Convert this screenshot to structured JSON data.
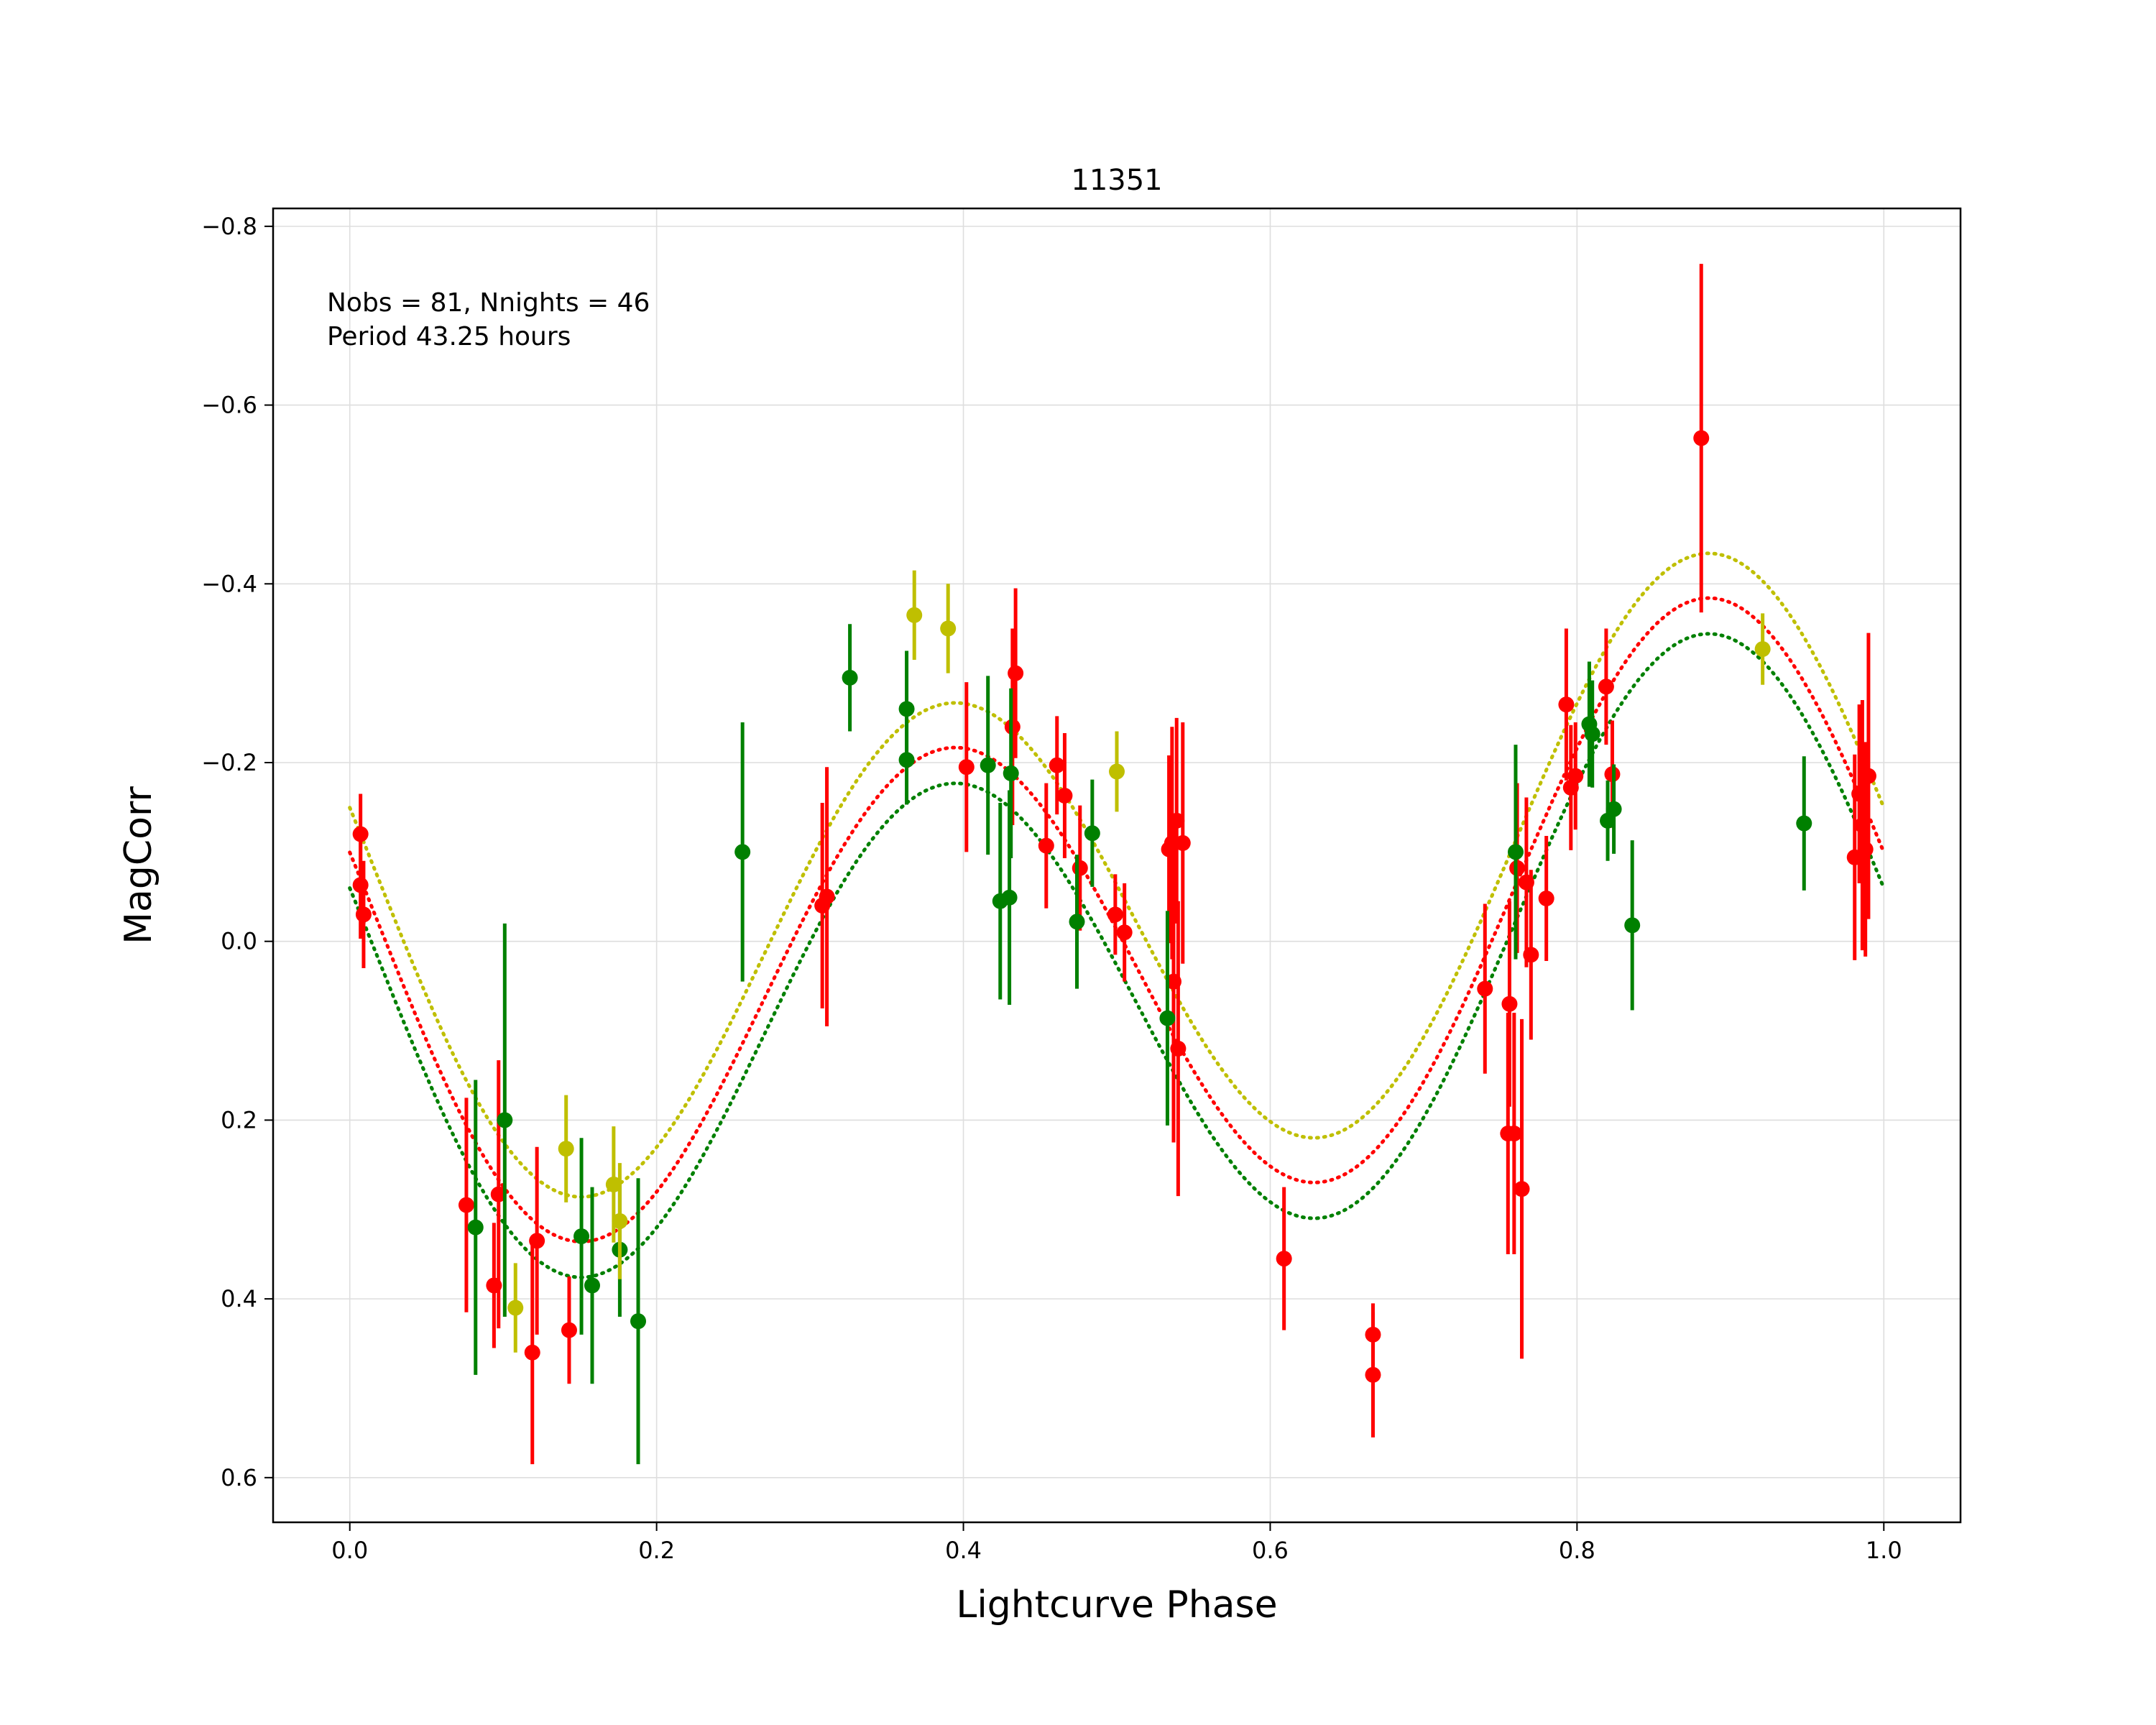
{
  "chart_data": {
    "type": "scatter",
    "title": "11351",
    "xlabel": "Lightcurve Phase",
    "ylabel": "MagCorr",
    "xlim": [
      -0.05,
      1.05
    ],
    "ylim": [
      0.65,
      -0.82
    ],
    "y_inverted": true,
    "grid": true,
    "xticks": [
      0.0,
      0.2,
      0.4,
      0.6,
      0.8,
      1.0
    ],
    "xtick_labels": [
      "0.0",
      "0.2",
      "0.4",
      "0.6",
      "0.8",
      "1.0"
    ],
    "yticks": [
      -0.8,
      -0.6,
      -0.4,
      -0.2,
      0.0,
      0.2,
      0.4,
      0.6
    ],
    "ytick_labels": [
      "−0.8",
      "−0.6",
      "−0.4",
      "−0.2",
      "0.0",
      "0.2",
      "0.4",
      "0.6"
    ],
    "annotation_lines": [
      "Nobs = 81, Nnights = 46",
      "Period 43.25 hours"
    ],
    "colors": {
      "red": "#ff0000",
      "green": "#008000",
      "yellow": "#bfbf00"
    },
    "fits": [
      {
        "color": "yellow",
        "offset": -0.05,
        "amplitude_1": 0.09,
        "phase_1": 0.33,
        "amplitude_2": 0.3,
        "phase_2": 0.14
      },
      {
        "color": "red",
        "offset": 0.0,
        "amplitude_1": 0.09,
        "phase_1": 0.33,
        "amplitude_2": 0.3,
        "phase_2": 0.14
      },
      {
        "color": "green",
        "offset": 0.04,
        "amplitude_1": 0.09,
        "phase_1": 0.33,
        "amplitude_2": 0.3,
        "phase_2": 0.14
      }
    ],
    "series": [
      {
        "color": "red",
        "points": [
          [
            0.007,
            -0.12,
            0.045
          ],
          [
            0.007,
            -0.063,
            0.06
          ],
          [
            0.009,
            -0.03,
            0.06
          ],
          [
            0.076,
            0.295,
            0.12
          ],
          [
            0.094,
            0.385,
            0.07
          ],
          [
            0.097,
            0.283,
            0.15
          ],
          [
            0.119,
            0.46,
            0.125
          ],
          [
            0.122,
            0.335,
            0.105
          ],
          [
            0.143,
            0.435,
            0.06
          ],
          [
            0.308,
            -0.04,
            0.115
          ],
          [
            0.311,
            -0.05,
            0.145
          ],
          [
            0.402,
            -0.195,
            0.095
          ],
          [
            0.432,
            -0.24,
            0.11
          ],
          [
            0.434,
            -0.3,
            0.095
          ],
          [
            0.454,
            -0.107,
            0.07
          ],
          [
            0.461,
            -0.197,
            0.055
          ],
          [
            0.466,
            -0.163,
            0.07
          ],
          [
            0.476,
            -0.082,
            0.07
          ],
          [
            0.499,
            -0.03,
            0.045
          ],
          [
            0.505,
            -0.01,
            0.055
          ],
          [
            0.534,
            -0.103,
            0.105
          ],
          [
            0.536,
            -0.11,
            0.13
          ],
          [
            0.537,
            0.045,
            0.18
          ],
          [
            0.539,
            -0.135,
            0.115
          ],
          [
            0.54,
            0.12,
            0.165
          ],
          [
            0.543,
            -0.11,
            0.135
          ],
          [
            0.609,
            0.355,
            0.08
          ],
          [
            0.667,
            0.44,
            0.035
          ],
          [
            0.667,
            0.485,
            0.07
          ],
          [
            0.74,
            0.053,
            0.095
          ],
          [
            0.755,
            0.215,
            0.135
          ],
          [
            0.756,
            0.07,
            0.115
          ],
          [
            0.759,
            0.215,
            0.135
          ],
          [
            0.761,
            -0.082,
            0.095
          ],
          [
            0.764,
            0.277,
            0.19
          ],
          [
            0.767,
            -0.066,
            0.095
          ],
          [
            0.77,
            0.015,
            0.095
          ],
          [
            0.78,
            -0.048,
            0.07
          ],
          [
            0.793,
            -0.265,
            0.085
          ],
          [
            0.796,
            -0.172,
            0.07
          ],
          [
            0.799,
            -0.185,
            0.06
          ],
          [
            0.819,
            -0.285,
            0.065
          ],
          [
            0.823,
            -0.187,
            0.06
          ],
          [
            0.881,
            -0.563,
            0.195
          ],
          [
            0.981,
            -0.094,
            0.115
          ],
          [
            0.984,
            -0.165,
            0.1
          ],
          [
            0.986,
            -0.13,
            0.14
          ],
          [
            0.988,
            -0.103,
            0.12
          ],
          [
            0.99,
            -0.185,
            0.16
          ]
        ]
      },
      {
        "color": "green",
        "points": [
          [
            0.082,
            0.32,
            0.165
          ],
          [
            0.101,
            0.2,
            0.22
          ],
          [
            0.151,
            0.33,
            0.11
          ],
          [
            0.158,
            0.385,
            0.11
          ],
          [
            0.176,
            0.345,
            0.075
          ],
          [
            0.188,
            0.425,
            0.16
          ],
          [
            0.256,
            -0.1,
            0.145
          ],
          [
            0.326,
            -0.295,
            0.06
          ],
          [
            0.363,
            -0.26,
            0.065
          ],
          [
            0.363,
            -0.203,
            0.05
          ],
          [
            0.416,
            -0.197,
            0.1
          ],
          [
            0.424,
            -0.045,
            0.11
          ],
          [
            0.43,
            -0.049,
            0.12
          ],
          [
            0.431,
            -0.188,
            0.095
          ],
          [
            0.474,
            -0.022,
            0.075
          ],
          [
            0.484,
            -0.121,
            0.06
          ],
          [
            0.533,
            0.086,
            0.12
          ],
          [
            0.76,
            -0.1,
            0.12
          ],
          [
            0.808,
            -0.243,
            0.07
          ],
          [
            0.81,
            -0.232,
            0.06
          ],
          [
            0.82,
            -0.135,
            0.045
          ],
          [
            0.824,
            -0.148,
            0.05
          ],
          [
            0.836,
            -0.018,
            0.095
          ],
          [
            0.948,
            -0.132,
            0.075
          ]
        ]
      },
      {
        "color": "yellow",
        "points": [
          [
            0.108,
            0.41,
            0.05
          ],
          [
            0.141,
            0.232,
            0.06
          ],
          [
            0.172,
            0.272,
            0.065
          ],
          [
            0.176,
            0.313,
            0.065
          ],
          [
            0.368,
            -0.365,
            0.05
          ],
          [
            0.39,
            -0.35,
            0.05
          ],
          [
            0.5,
            -0.19,
            0.045
          ],
          [
            0.921,
            -0.327,
            0.04
          ]
        ]
      }
    ]
  }
}
